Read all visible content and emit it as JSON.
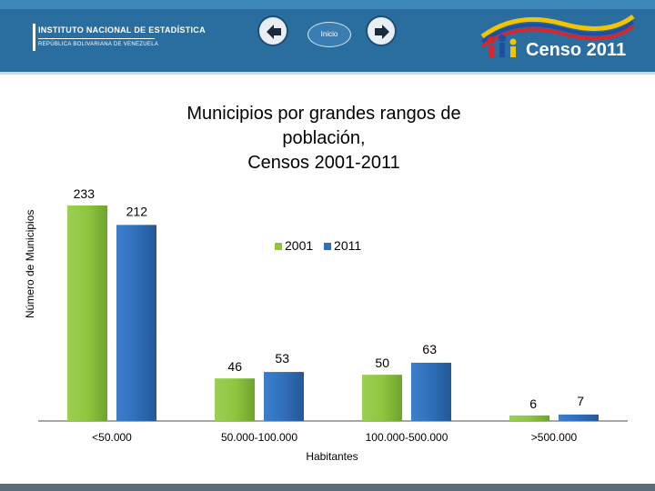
{
  "header": {
    "institute_line1": "INSTITUTO NACIONAL DE ESTADÍSTICA",
    "institute_line2": "REPÚBLICA BOLIVARIANA DE VENEZUELA",
    "inicio_label": "Inicio",
    "censo_label": "Censo 2011"
  },
  "colors": {
    "series_2001": "#8dc63f",
    "series_2011": "#2f6fba",
    "header": "#2a6ea0"
  },
  "chart_data": {
    "type": "bar",
    "title_lines": [
      "Municipios por grandes rangos de",
      "población,",
      "Censos 2001-2011"
    ],
    "xlabel": "Habitantes",
    "ylabel": "Número de Municipios",
    "categories": [
      "<50.000",
      "50.000-100.000",
      "100.000-500.000",
      ">500.000"
    ],
    "series": [
      {
        "name": "2001",
        "values": [
          233,
          46,
          50,
          6
        ]
      },
      {
        "name": "2011",
        "values": [
          212,
          53,
          63,
          7
        ]
      }
    ],
    "ylim": [
      0,
      233
    ],
    "legend_position": "center"
  }
}
